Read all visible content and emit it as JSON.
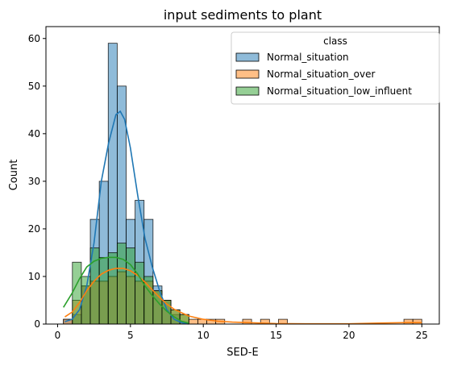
{
  "chart_data": {
    "type": "histogram",
    "title": "input sediments to plant",
    "xlabel": "SED-E",
    "ylabel": "Count",
    "xlim": [
      -0.8,
      26.2
    ],
    "ylim": [
      0,
      62.5
    ],
    "xticks": [
      0,
      5,
      10,
      15,
      20,
      25
    ],
    "yticks": [
      0,
      10,
      20,
      30,
      40,
      50,
      60
    ],
    "grid": false,
    "bin_start": 0.4,
    "bin_width": 0.615,
    "legend": {
      "title": "class",
      "placement": "top-right"
    },
    "series": [
      {
        "name": "Normal_situation",
        "color": "#1f77b4",
        "counts": [
          1,
          2,
          8,
          22,
          30,
          59,
          50,
          22,
          26,
          22,
          8,
          5,
          2,
          0,
          0,
          0,
          0,
          0,
          0,
          0,
          0,
          0,
          0,
          0,
          0,
          0,
          0,
          0,
          0,
          0,
          0,
          0,
          0,
          0,
          0,
          0,
          0,
          0,
          0,
          0
        ],
        "kde_x": [
          0.5,
          1.0,
          1.5,
          2.0,
          2.5,
          3.0,
          3.5,
          4.0,
          4.3,
          4.6,
          5.0,
          5.5,
          6.0,
          6.5,
          7.0,
          7.5,
          8.0,
          8.5,
          9.0
        ],
        "kde_y": [
          0.5,
          1,
          3,
          8,
          17,
          30,
          38,
          44,
          44.7,
          43,
          37,
          27,
          18,
          12,
          7,
          3,
          1,
          0.3,
          0
        ]
      },
      {
        "name": "Normal_situation_over",
        "color": "#ff7f0e",
        "counts": [
          1,
          5,
          8,
          9,
          9,
          10,
          11,
          10,
          9,
          9,
          7,
          5,
          3,
          2,
          1,
          1,
          1,
          1,
          0,
          0,
          1,
          0,
          1,
          0,
          1,
          0,
          0,
          0,
          0,
          0,
          0,
          0,
          0,
          0,
          0,
          0,
          0,
          0,
          1,
          1
        ],
        "kde_x": [
          0.5,
          1.0,
          1.5,
          2.0,
          2.5,
          3.0,
          3.5,
          4.0,
          4.5,
          5.0,
          5.5,
          6.0,
          6.5,
          7.0,
          7.5,
          8.0,
          9.0,
          10.0,
          11.0,
          12.0,
          13.0,
          14.0,
          15.0,
          17.0,
          20.0,
          22.0,
          24.0,
          25.0
        ],
        "kde_y": [
          1.5,
          2.5,
          4.5,
          7,
          9,
          10.5,
          11.3,
          11.7,
          11.7,
          11.2,
          10.2,
          8.8,
          7.2,
          5.6,
          4.2,
          3.1,
          1.7,
          1.0,
          0.6,
          0.4,
          0.3,
          0.2,
          0.1,
          0.05,
          0.05,
          0.2,
          0.3,
          0.3
        ]
      },
      {
        "name": "Normal_situation_low_influent",
        "color": "#2ca02c",
        "counts": [
          0,
          13,
          10,
          16,
          14,
          15,
          17,
          16,
          13,
          10,
          7,
          5,
          3,
          2,
          0,
          0,
          0,
          0,
          0,
          0,
          0,
          0,
          0,
          0,
          0,
          0,
          0,
          0,
          0,
          0,
          0,
          0,
          0,
          0,
          0,
          0,
          0,
          0,
          0,
          0
        ],
        "kde_x": [
          0.4,
          1.0,
          1.5,
          2.0,
          2.5,
          3.0,
          3.5,
          4.0,
          4.5,
          5.0,
          5.5,
          6.0,
          6.5,
          7.0,
          7.5,
          8.0,
          8.5,
          9.0
        ],
        "kde_y": [
          3.5,
          6.5,
          9.5,
          12,
          13.2,
          13.8,
          14,
          14,
          13.6,
          12.5,
          10.5,
          8,
          6,
          4.2,
          2.7,
          1.5,
          0.6,
          0.2
        ]
      }
    ]
  }
}
